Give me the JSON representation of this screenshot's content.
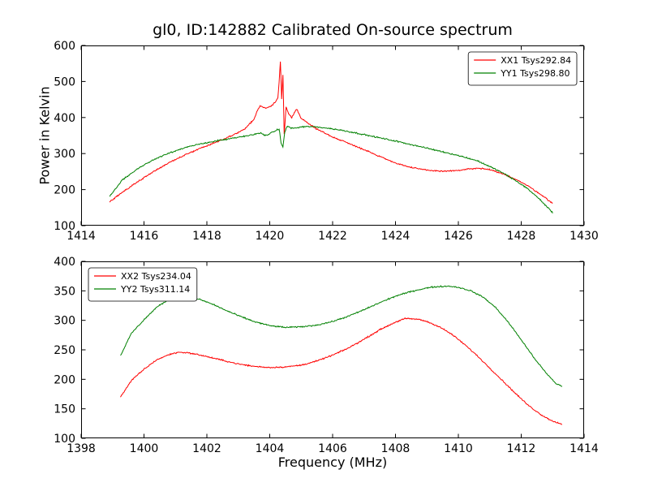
{
  "chart_data": [
    {
      "type": "line",
      "title": "gl0, ID:142882 Calibrated On-source spectrum",
      "xlabel": "",
      "ylabel": "Power in Kelvin",
      "xlim": [
        1414,
        1430
      ],
      "ylim": [
        100,
        600
      ],
      "xticks": [
        1414,
        1416,
        1418,
        1420,
        1422,
        1424,
        1426,
        1428,
        1430
      ],
      "yticks": [
        100,
        200,
        300,
        400,
        500,
        600
      ],
      "grid": false,
      "legend_position": "top-right",
      "series": [
        {
          "name": "XX1 Tsys292.84",
          "color": "#ff0000",
          "x": [
            1414.9,
            1415.3,
            1415.8,
            1416.3,
            1416.8,
            1417.3,
            1417.8,
            1418.3,
            1418.8,
            1419.2,
            1419.5,
            1419.6,
            1419.7,
            1419.8,
            1419.9,
            1420.0,
            1420.1,
            1420.2,
            1420.26,
            1420.3,
            1420.34,
            1420.38,
            1420.42,
            1420.46,
            1420.52,
            1420.6,
            1420.7,
            1420.85,
            1421.0,
            1421.2,
            1421.5,
            1422.0,
            1422.5,
            1423.0,
            1423.5,
            1424.0,
            1424.5,
            1425.0,
            1425.5,
            1426.0,
            1426.3,
            1426.7,
            1427.0,
            1427.4,
            1427.8,
            1428.2,
            1428.6,
            1429.0
          ],
          "y": [
            165,
            192,
            222,
            250,
            275,
            296,
            315,
            332,
            350,
            368,
            395,
            418,
            432,
            428,
            425,
            430,
            437,
            445,
            455,
            500,
            558,
            450,
            520,
            350,
            430,
            410,
            400,
            425,
            398,
            385,
            368,
            346,
            329,
            311,
            292,
            274,
            261,
            254,
            251,
            253,
            257,
            259,
            255,
            244,
            230,
            211,
            188,
            162
          ]
        },
        {
          "name": "YY1 Tsys298.80",
          "color": "#008000",
          "x": [
            1414.9,
            1415.3,
            1415.8,
            1416.3,
            1416.8,
            1417.3,
            1417.8,
            1418.3,
            1418.8,
            1419.2,
            1419.5,
            1419.7,
            1419.85,
            1420.0,
            1420.15,
            1420.3,
            1420.36,
            1420.42,
            1420.48,
            1420.55,
            1420.65,
            1420.8,
            1421.0,
            1421.3,
            1421.7,
            1422.2,
            1422.7,
            1423.2,
            1423.7,
            1424.2,
            1424.7,
            1425.2,
            1425.7,
            1426.2,
            1426.6,
            1427.0,
            1427.4,
            1427.8,
            1428.2,
            1428.6,
            1429.0
          ],
          "y": [
            180,
            226,
            258,
            283,
            302,
            316,
            327,
            335,
            342,
            348,
            353,
            358,
            350,
            355,
            362,
            368,
            330,
            318,
            360,
            376,
            372,
            370,
            374,
            375,
            372,
            366,
            358,
            349,
            340,
            331,
            321,
            311,
            301,
            290,
            280,
            264,
            247,
            226,
            203,
            172,
            136
          ]
        }
      ]
    },
    {
      "type": "line",
      "title": "",
      "xlabel": "Frequency (MHz)",
      "ylabel": "",
      "xlim": [
        1398,
        1414
      ],
      "ylim": [
        100,
        400
      ],
      "xticks": [
        1398,
        1400,
        1402,
        1404,
        1406,
        1408,
        1410,
        1412,
        1414
      ],
      "yticks": [
        100,
        150,
        200,
        250,
        300,
        350,
        400
      ],
      "grid": false,
      "legend_position": "top-left",
      "series": [
        {
          "name": "XX2 Tsys234.04",
          "color": "#ff0000",
          "x": [
            1399.25,
            1399.6,
            1400.0,
            1400.4,
            1400.8,
            1401.1,
            1401.4,
            1401.8,
            1402.2,
            1402.6,
            1403.0,
            1403.5,
            1404.0,
            1404.5,
            1405.0,
            1405.5,
            1406.0,
            1406.5,
            1407.0,
            1407.5,
            1408.0,
            1408.3,
            1408.7,
            1409.0,
            1409.4,
            1409.8,
            1410.2,
            1410.6,
            1411.0,
            1411.4,
            1411.8,
            1412.2,
            1412.6,
            1413.0,
            1413.3
          ],
          "y": [
            170,
            198,
            217,
            233,
            242,
            246,
            245,
            241,
            236,
            231,
            226,
            222,
            220,
            221,
            224,
            231,
            241,
            253,
            268,
            284,
            297,
            303,
            302,
            298,
            289,
            276,
            259,
            240,
            219,
            198,
            177,
            157,
            141,
            129,
            124
          ]
        },
        {
          "name": "YY2 Tsys311.14",
          "color": "#008000",
          "x": [
            1399.25,
            1399.6,
            1400.0,
            1400.4,
            1400.8,
            1401.1,
            1401.4,
            1401.8,
            1402.2,
            1402.6,
            1403.0,
            1403.5,
            1404.0,
            1404.5,
            1405.0,
            1405.5,
            1406.0,
            1406.5,
            1407.0,
            1407.5,
            1408.0,
            1408.5,
            1409.0,
            1409.3,
            1409.7,
            1410.0,
            1410.4,
            1410.8,
            1411.2,
            1411.6,
            1412.0,
            1412.4,
            1412.8,
            1413.1,
            1413.3
          ],
          "y": [
            240,
            278,
            301,
            322,
            336,
            341,
            340,
            335,
            327,
            317,
            308,
            298,
            291,
            288,
            289,
            292,
            298,
            307,
            318,
            330,
            341,
            349,
            355,
            357,
            358,
            356,
            350,
            339,
            321,
            296,
            267,
            237,
            210,
            193,
            188
          ]
        }
      ]
    }
  ]
}
